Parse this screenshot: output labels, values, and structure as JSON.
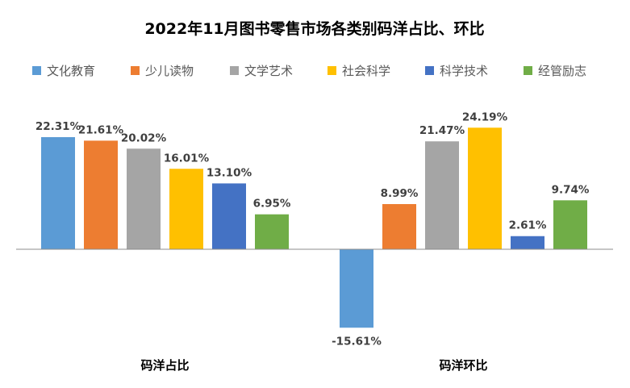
{
  "chart_data": {
    "type": "bar",
    "title": "2022年11月图书零售市场各类别码洋占比、环比",
    "categories": [
      "码洋占比",
      "码洋环比"
    ],
    "series": [
      {
        "name": "文化教育",
        "color": "#5B9BD5",
        "values": [
          22.31,
          -15.61
        ],
        "labels": [
          "22.31%",
          "-15.61%"
        ]
      },
      {
        "name": "少儿读物",
        "color": "#ED7D31",
        "values": [
          21.61,
          8.99
        ],
        "labels": [
          "21.61%",
          "8.99%"
        ]
      },
      {
        "name": "文学艺术",
        "color": "#A5A5A5",
        "values": [
          20.02,
          21.47
        ],
        "labels": [
          "20.02%",
          "21.47%"
        ]
      },
      {
        "name": "社会科学",
        "color": "#FFC000",
        "values": [
          16.01,
          24.19
        ],
        "labels": [
          "16.01%",
          "24.19%"
        ]
      },
      {
        "name": "科学技术",
        "color": "#4472C4",
        "values": [
          13.1,
          2.61
        ],
        "labels": [
          "13.10%",
          "2.61%"
        ]
      },
      {
        "name": "经管励志",
        "color": "#70AD47",
        "values": [
          6.95,
          9.74
        ],
        "labels": [
          "6.95%",
          "9.74%"
        ]
      }
    ],
    "xlabel": "",
    "ylabel": "",
    "ylim": [
      -16,
      25
    ],
    "grid": false,
    "legend": "top"
  }
}
